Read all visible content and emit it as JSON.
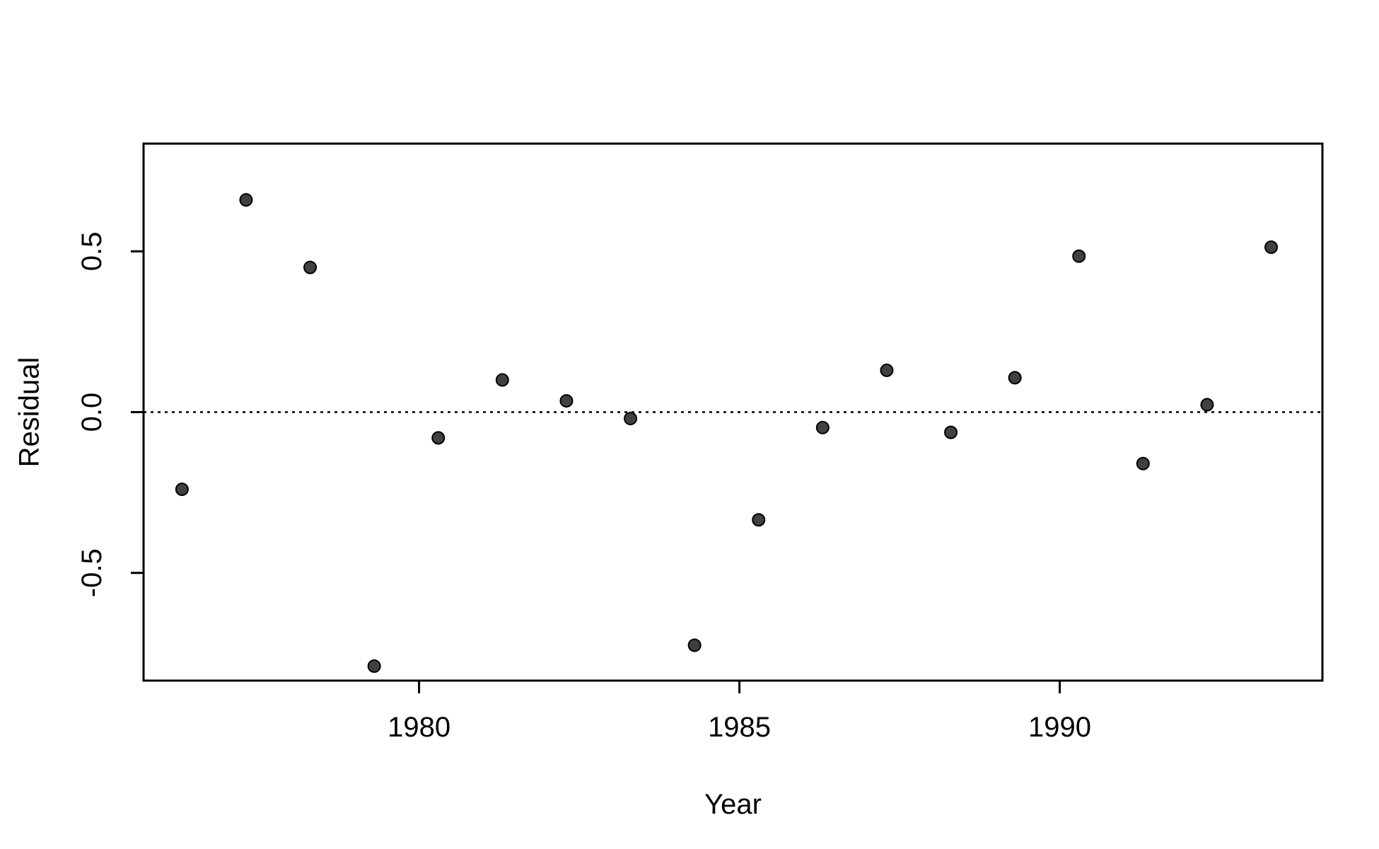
{
  "chart_data": {
    "type": "scatter",
    "title": "",
    "xlabel": "Year",
    "ylabel": "Residual",
    "xlim": [
      1975.7,
      1994.1
    ],
    "ylim": [
      -0.835,
      0.835
    ],
    "xticks": [
      1980,
      1985,
      1990
    ],
    "xtick_labels": [
      "1980",
      "1985",
      "1990"
    ],
    "yticks": [
      -0.5,
      0.0,
      0.5
    ],
    "ytick_labels": [
      "-0.5",
      "0.0",
      "0.5"
    ],
    "reference_line": {
      "y": 0,
      "style": "dotted"
    },
    "grid": false,
    "legend": "none",
    "series": [
      {
        "x": [
          1976.3,
          1977.3,
          1978.3,
          1979.3,
          1980.3,
          1981.3,
          1982.3,
          1983.3,
          1984.3,
          1985.3,
          1986.3,
          1987.3,
          1988.3,
          1989.3,
          1990.3,
          1991.3,
          1992.3,
          1993.3
        ],
        "y": [
          -0.24,
          0.66,
          0.45,
          -0.79,
          -0.08,
          0.1,
          0.035,
          -0.02,
          -0.725,
          -0.335,
          -0.048,
          0.13,
          -0.063,
          0.107,
          0.485,
          -0.16,
          0.023,
          0.513
        ]
      }
    ],
    "colors": {
      "point_fill": "#404040",
      "point_stroke": "#000000",
      "axis": "#000000"
    }
  }
}
